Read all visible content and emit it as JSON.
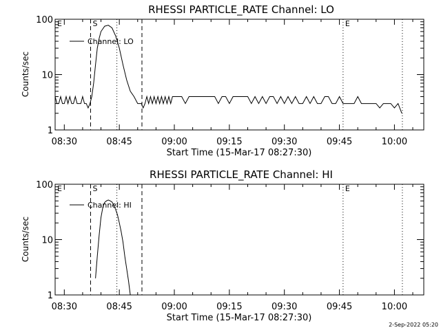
{
  "footer": {
    "date": "2-Sep-2022 05:20"
  },
  "chart_data": [
    {
      "type": "line",
      "title": "RHESSI PARTICLE_RATE Channel: LO",
      "xlabel": "Start Time (15-Mar-17 08:27:30)",
      "ylabel": "Counts/sec",
      "yscale": "log",
      "ylim": [
        1,
        100
      ],
      "xlim": [
        "08:27:30",
        "10:08:00"
      ],
      "x_ticks": [
        "08:30",
        "08:45",
        "09:00",
        "09:15",
        "09:30",
        "09:45",
        "10:00"
      ],
      "y_ticks": [
        "1",
        "10",
        "100"
      ],
      "legend": {
        "label": "Channel: LO",
        "placement": "top-left"
      },
      "markers": [
        {
          "label": "E",
          "time": "08:27:30",
          "style": "dotted"
        },
        {
          "label": "S",
          "time": "08:37:10",
          "style": "dashed"
        },
        {
          "label": "",
          "time": "08:51:10",
          "style": "dashed"
        },
        {
          "label": "",
          "time": "08:44:20",
          "style": "dotted"
        },
        {
          "label": "E",
          "time": "09:46:00",
          "style": "dotted"
        },
        {
          "label": "",
          "time": "10:02:10",
          "style": "dotted"
        }
      ],
      "series": [
        {
          "name": "Channel: LO",
          "x": [
            "08:27:30",
            "08:28:00",
            "08:28:30",
            "08:29:00",
            "08:29:30",
            "08:30:00",
            "08:30:30",
            "08:31:00",
            "08:31:30",
            "08:32:00",
            "08:32:30",
            "08:33:00",
            "08:33:30",
            "08:34:00",
            "08:34:30",
            "08:35:00",
            "08:35:30",
            "08:36:00",
            "08:36:30",
            "08:37:00",
            "08:37:30",
            "08:38:00",
            "08:38:30",
            "08:39:00",
            "08:39:30",
            "08:40:00",
            "08:41:00",
            "08:42:00",
            "08:43:00",
            "08:44:00",
            "08:45:00",
            "08:46:00",
            "08:47:00",
            "08:48:00",
            "08:49:00",
            "08:50:00",
            "08:51:00",
            "08:51:30",
            "08:52:00",
            "08:52:30",
            "08:53:00",
            "08:53:30",
            "08:54:00",
            "08:54:30",
            "08:55:00",
            "08:55:30",
            "08:56:00",
            "08:56:30",
            "08:57:00",
            "08:57:30",
            "08:58:00",
            "08:58:30",
            "08:59:00",
            "08:59:30",
            "09:00:00",
            "09:01:00",
            "09:02:00",
            "09:03:00",
            "09:04:00",
            "09:05:00",
            "09:06:00",
            "09:07:00",
            "09:08:00",
            "09:09:00",
            "09:10:00",
            "09:11:00",
            "09:12:00",
            "09:13:00",
            "09:14:00",
            "09:15:00",
            "09:16:00",
            "09:17:00",
            "09:18:00",
            "09:19:00",
            "09:20:00",
            "09:21:00",
            "09:22:00",
            "09:23:00",
            "09:24:00",
            "09:25:00",
            "09:26:00",
            "09:27:00",
            "09:28:00",
            "09:29:00",
            "09:30:00",
            "09:31:00",
            "09:32:00",
            "09:33:00",
            "09:34:00",
            "09:35:00",
            "09:36:00",
            "09:37:00",
            "09:38:00",
            "09:39:00",
            "09:40:00",
            "09:41:00",
            "09:42:00",
            "09:43:00",
            "09:44:00",
            "09:45:00",
            "09:46:00",
            "09:47:00",
            "09:48:00",
            "09:49:00",
            "09:50:00",
            "09:51:00",
            "09:52:00",
            "09:53:00",
            "09:54:00",
            "09:55:00",
            "09:56:00",
            "09:57:00",
            "09:58:00",
            "09:59:00",
            "10:00:00",
            "10:01:00",
            "10:02:00"
          ],
          "values": [
            4,
            3,
            3,
            4,
            3,
            3,
            4,
            3,
            4,
            3,
            3,
            4,
            3,
            3,
            3,
            4,
            3,
            3,
            2.5,
            3,
            4,
            7,
            15,
            30,
            45,
            60,
            75,
            78,
            70,
            50,
            30,
            15,
            8,
            5,
            4,
            3,
            3,
            2.5,
            3,
            4,
            3,
            4,
            3,
            4,
            3,
            4,
            3,
            4,
            3,
            4,
            3,
            4,
            3,
            4,
            4,
            4,
            4,
            3,
            4,
            4,
            4,
            4,
            4,
            4,
            4,
            4,
            3,
            4,
            4,
            3,
            4,
            4,
            4,
            4,
            4,
            3,
            4,
            3,
            4,
            3,
            4,
            4,
            3,
            4,
            3,
            4,
            3,
            4,
            3,
            3,
            4,
            3,
            4,
            3,
            3,
            4,
            4,
            3,
            3,
            4,
            3,
            3,
            3,
            3,
            4,
            3,
            3,
            3,
            3,
            3,
            2.5,
            3,
            3,
            3,
            2.5,
            3,
            2
          ]
        }
      ]
    },
    {
      "type": "line",
      "title": "RHESSI PARTICLE_RATE Channel: HI",
      "xlabel": "Start Time (15-Mar-17 08:27:30)",
      "ylabel": "Counts/sec",
      "yscale": "log",
      "ylim": [
        1,
        100
      ],
      "xlim": [
        "08:27:30",
        "10:08:00"
      ],
      "x_ticks": [
        "08:30",
        "08:45",
        "09:00",
        "09:15",
        "09:30",
        "09:45",
        "10:00"
      ],
      "y_ticks": [
        "1",
        "10",
        "100"
      ],
      "legend": {
        "label": "Channel: HI",
        "placement": "top-left"
      },
      "markers": [
        {
          "label": "E",
          "time": "08:27:30",
          "style": "dotted"
        },
        {
          "label": "S",
          "time": "08:37:10",
          "style": "dashed"
        },
        {
          "label": "",
          "time": "08:51:10",
          "style": "dashed"
        },
        {
          "label": "",
          "time": "08:44:20",
          "style": "dotted"
        },
        {
          "label": "E",
          "time": "09:46:00",
          "style": "dotted"
        },
        {
          "label": "",
          "time": "10:02:10",
          "style": "dotted"
        }
      ],
      "series": [
        {
          "name": "Channel: HI",
          "x": [
            "08:38:30",
            "08:39:00",
            "08:39:30",
            "08:40:00",
            "08:40:30",
            "08:41:00",
            "08:41:30",
            "08:42:00",
            "08:42:30",
            "08:43:00",
            "08:43:30",
            "08:44:00",
            "08:44:30",
            "08:45:00",
            "08:45:30",
            "08:46:00",
            "08:46:30",
            "08:47:00",
            "08:47:30",
            "08:48:00"
          ],
          "values": [
            2,
            5,
            12,
            25,
            38,
            47,
            50,
            52,
            50,
            48,
            42,
            35,
            28,
            20,
            14,
            9,
            5,
            3,
            1.8,
            1
          ]
        }
      ]
    }
  ]
}
